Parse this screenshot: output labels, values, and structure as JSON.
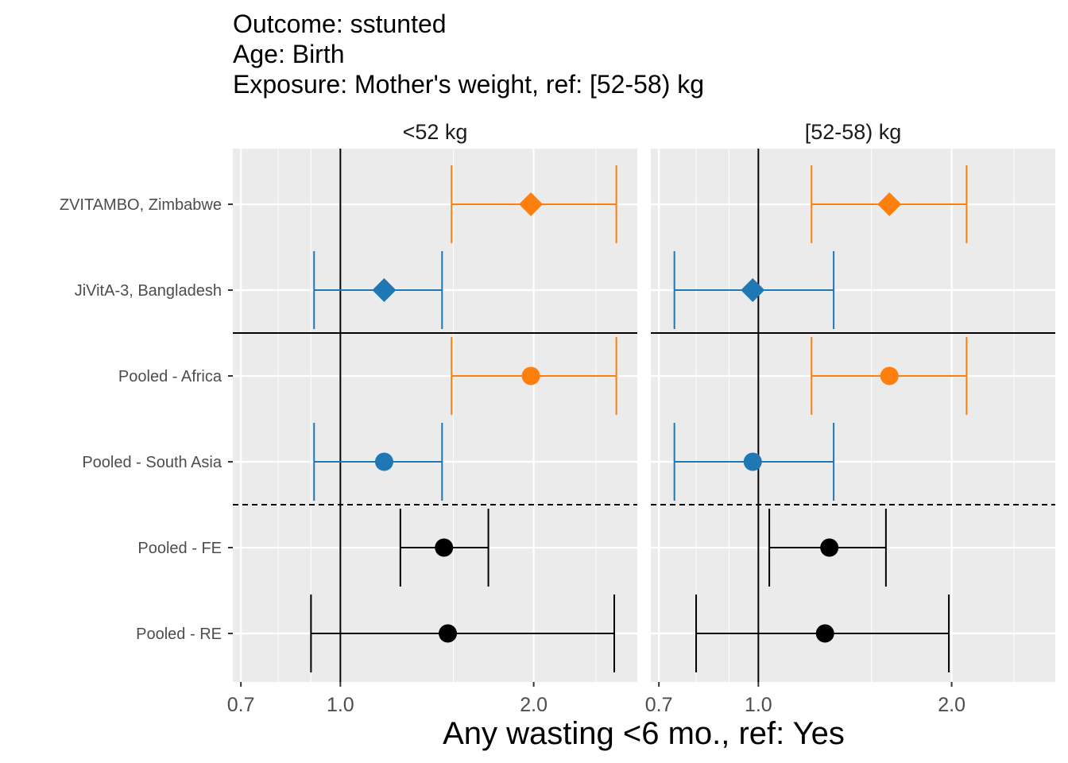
{
  "chart_data": {
    "type": "forest",
    "title_lines": [
      "Outcome: sstunted",
      "Age: Birth",
      "Exposure: Mother's weight, ref: [52-58) kg"
    ],
    "xlabel": "Any wasting  <6 mo., ref: Yes",
    "x_scale": "log",
    "xlim": [
      0.68,
      2.9
    ],
    "xticks": [
      {
        "value": 0.7,
        "label": "0.7"
      },
      {
        "value": 1.0,
        "label": "1.0"
      },
      {
        "value": 2.0,
        "label": "2.0"
      }
    ],
    "minor_gridlines": [
      0.8,
      0.9,
      1.5,
      2.5
    ],
    "reference_line": 1.0,
    "rows": [
      "ZVITAMBO, Zimbabwe",
      "JiVitA-3, Bangladesh",
      "Pooled - Africa",
      "Pooled - South Asia",
      "Pooled - FE",
      "Pooled - RE"
    ],
    "separators": [
      {
        "after_row": 1,
        "style": "solid"
      },
      {
        "after_row": 3,
        "style": "dashed"
      }
    ],
    "colors": {
      "Africa": "#ff7f0e",
      "South Asia": "#1f77b4",
      "Pooled": "#000000",
      "panel_bg": "#ebebeb",
      "grid": "#ffffff"
    },
    "panels": [
      {
        "label": "<52 kg",
        "points": [
          {
            "row": "ZVITAMBO, Zimbabwe",
            "est": 1.98,
            "lo": 1.49,
            "hi": 2.69,
            "shape": "diamond",
            "group": "Africa"
          },
          {
            "row": "JiVitA-3, Bangladesh",
            "est": 1.17,
            "lo": 0.91,
            "hi": 1.44,
            "shape": "diamond",
            "group": "South Asia"
          },
          {
            "row": "Pooled - Africa",
            "est": 1.98,
            "lo": 1.49,
            "hi": 2.69,
            "shape": "circle",
            "group": "Africa"
          },
          {
            "row": "Pooled - South Asia",
            "est": 1.17,
            "lo": 0.91,
            "hi": 1.44,
            "shape": "circle",
            "group": "South Asia"
          },
          {
            "row": "Pooled - FE",
            "est": 1.45,
            "lo": 1.24,
            "hi": 1.7,
            "shape": "circle",
            "group": "Pooled"
          },
          {
            "row": "Pooled - RE",
            "est": 1.47,
            "lo": 0.9,
            "hi": 2.67,
            "shape": "circle",
            "group": "Pooled"
          }
        ]
      },
      {
        "label": "[52-58) kg",
        "points": [
          {
            "row": "ZVITAMBO, Zimbabwe",
            "est": 1.6,
            "lo": 1.21,
            "hi": 2.11,
            "shape": "diamond",
            "group": "Africa"
          },
          {
            "row": "JiVitA-3, Bangladesh",
            "est": 0.98,
            "lo": 0.74,
            "hi": 1.31,
            "shape": "diamond",
            "group": "South Asia"
          },
          {
            "row": "Pooled - Africa",
            "est": 1.6,
            "lo": 1.21,
            "hi": 2.11,
            "shape": "circle",
            "group": "Africa"
          },
          {
            "row": "Pooled - South Asia",
            "est": 0.98,
            "lo": 0.74,
            "hi": 1.31,
            "shape": "circle",
            "group": "South Asia"
          },
          {
            "row": "Pooled - FE",
            "est": 1.29,
            "lo": 1.04,
            "hi": 1.58,
            "shape": "circle",
            "group": "Pooled"
          },
          {
            "row": "Pooled - RE",
            "est": 1.27,
            "lo": 0.8,
            "hi": 1.98,
            "shape": "circle",
            "group": "Pooled"
          }
        ]
      }
    ]
  }
}
